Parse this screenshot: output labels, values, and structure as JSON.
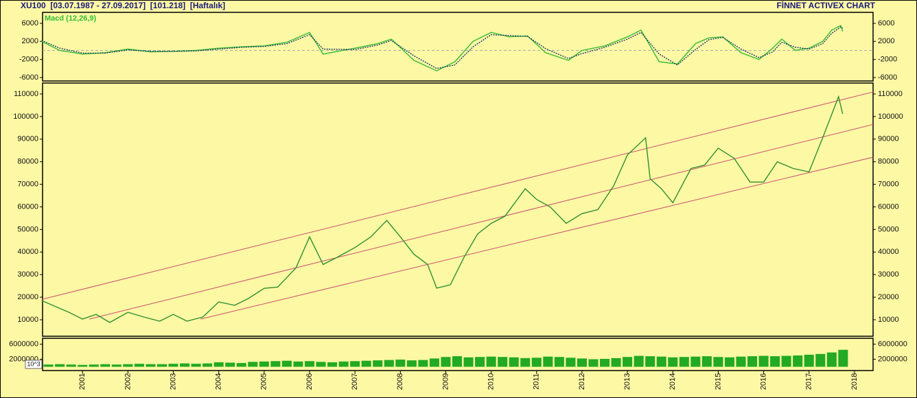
{
  "header": {
    "title": "XU100  [03.07.1987 - 27.09.2017]  [101.218]  [Haftalık]",
    "brand": "FİNNET ACTIVEX CHART"
  },
  "chart_data": [
    {
      "type": "line",
      "xlim": [
        2000.12,
        2018.41
      ],
      "ylim": [
        -6760,
        8430
      ],
      "yticks": [
        6000,
        2000,
        -2000,
        -6000
      ],
      "zero_line": true,
      "x": [
        2000.1,
        2000.5,
        2001.0,
        2001.5,
        2002.0,
        2002.5,
        2003.0,
        2003.5,
        2004.0,
        2004.5,
        2005.0,
        2005.5,
        2006.0,
        2006.3,
        2007.0,
        2007.5,
        2007.8,
        2008.3,
        2008.8,
        2009.2,
        2009.6,
        2010.0,
        2010.4,
        2010.8,
        2011.2,
        2011.7,
        2012.0,
        2012.5,
        2013.0,
        2013.3,
        2013.7,
        2014.1,
        2014.5,
        2014.8,
        2015.1,
        2015.5,
        2015.9,
        2016.2,
        2016.4,
        2016.7,
        2017.0,
        2017.3,
        2017.5,
        2017.7,
        2017.74
      ],
      "series": [
        {
          "name": "Macd (12,26,9)",
          "color": "#33bb33",
          "values": [
            2000,
            0,
            -800,
            -500,
            300,
            -300,
            -200,
            0,
            500,
            800,
            1000,
            1800,
            4000,
            -800,
            500,
            1500,
            2500,
            -2200,
            -4500,
            -2500,
            2000,
            4000,
            3000,
            3200,
            -500,
            -2200,
            0,
            1000,
            3000,
            4500,
            -2500,
            -3000,
            1500,
            2800,
            3000,
            -500,
            -2000,
            500,
            2500,
            0,
            500,
            2000,
            4500,
            5500,
            4200
          ]
        },
        {
          "color": "#1a3a6a",
          "dashed": true,
          "values": [
            2200,
            500,
            -600,
            -600,
            100,
            -200,
            -200,
            -100,
            300,
            700,
            900,
            1500,
            3500,
            300,
            200,
            1200,
            2200,
            -1200,
            -4000,
            -3200,
            800,
            3500,
            3300,
            3100,
            400,
            -1800,
            -700,
            700,
            2500,
            4000,
            -800,
            -3200,
            200,
            2400,
            2900,
            300,
            -1600,
            -300,
            1800,
            700,
            300,
            1500,
            3800,
            5200,
            4900
          ]
        }
      ]
    },
    {
      "type": "line",
      "xlim": [
        2000.12,
        2018.41
      ],
      "ylim": [
        2700,
        114850
      ],
      "yticks": [
        10000,
        20000,
        30000,
        40000,
        50000,
        60000,
        70000,
        80000,
        90000,
        100000,
        110000
      ],
      "x": [
        2000.1,
        2000.7,
        2001.0,
        2001.3,
        2001.6,
        2002.0,
        2002.35,
        2002.7,
        2003.0,
        2003.3,
        2003.65,
        2004.0,
        2004.35,
        2004.65,
        2005.0,
        2005.3,
        2005.7,
        2006.0,
        2006.3,
        2006.6,
        2007.0,
        2007.35,
        2007.7,
        2008.0,
        2008.3,
        2008.6,
        2008.8,
        2009.1,
        2009.4,
        2009.7,
        2010.0,
        2010.3,
        2010.75,
        2011.0,
        2011.3,
        2011.65,
        2012.0,
        2012.35,
        2012.7,
        2013.0,
        2013.4,
        2013.5,
        2013.75,
        2014.0,
        2014.4,
        2014.7,
        2015.0,
        2015.35,
        2015.7,
        2016.0,
        2016.3,
        2016.65,
        2017.0,
        2017.3,
        2017.5,
        2017.65,
        2017.74
      ],
      "series": [
        {
          "color": "#2f8f2f",
          "values": [
            18500,
            13300,
            10300,
            12400,
            8800,
            13300,
            11200,
            9400,
            12400,
            9400,
            11200,
            17900,
            16400,
            19400,
            23900,
            24500,
            33000,
            46700,
            34500,
            37600,
            42000,
            46700,
            54000,
            46700,
            39000,
            34500,
            24000,
            25500,
            37600,
            48000,
            52700,
            55800,
            68000,
            63300,
            60000,
            52700,
            57000,
            58800,
            69400,
            83000,
            90600,
            72400,
            68000,
            61800,
            77000,
            78500,
            86000,
            81500,
            71000,
            71000,
            80000,
            77000,
            75500,
            90600,
            101000,
            108800,
            101218
          ]
        }
      ],
      "channel": [
        {
          "color": "#c8506e",
          "x": [
            2000.12,
            2018.41
          ],
          "values": [
            19100,
            110900
          ]
        },
        {
          "color": "#c8506e",
          "x": [
            2001.15,
            2018.41
          ],
          "values": [
            10300,
            96500
          ]
        },
        {
          "color": "#c8506e",
          "x": [
            2003.6,
            2018.41
          ],
          "values": [
            10300,
            82000
          ]
        }
      ]
    },
    {
      "type": "bar",
      "xlim": [
        2000.12,
        2018.41
      ],
      "ylim": [
        -1000000,
        7550000
      ],
      "yticks": [
        6000000,
        2000000
      ],
      "y_label": "10^3",
      "color": "#22aa22",
      "xticks": [
        2001,
        2002,
        2003,
        2004,
        2005,
        2006,
        2007,
        2008,
        2009,
        2010,
        2011,
        2012,
        2013,
        2014,
        2015,
        2016,
        2017,
        2018
      ],
      "x": [
        2000.25,
        2000.5,
        2000.75,
        2001.0,
        2001.25,
        2001.5,
        2001.75,
        2002.0,
        2002.25,
        2002.5,
        2002.75,
        2003.0,
        2003.25,
        2003.5,
        2003.75,
        2004.0,
        2004.25,
        2004.5,
        2004.75,
        2005.0,
        2005.25,
        2005.5,
        2005.75,
        2006.0,
        2006.25,
        2006.5,
        2006.75,
        2007.0,
        2007.25,
        2007.5,
        2007.75,
        2008.0,
        2008.25,
        2008.5,
        2008.75,
        2009.0,
        2009.25,
        2009.5,
        2009.75,
        2010.0,
        2010.25,
        2010.5,
        2010.75,
        2011.0,
        2011.25,
        2011.5,
        2011.75,
        2012.0,
        2012.25,
        2012.5,
        2012.75,
        2013.0,
        2013.25,
        2013.5,
        2013.75,
        2014.0,
        2014.25,
        2014.5,
        2014.75,
        2015.0,
        2015.25,
        2015.5,
        2015.75,
        2016.0,
        2016.25,
        2016.5,
        2016.75,
        2017.0,
        2017.25,
        2017.5,
        2017.75
      ],
      "values": [
        600000,
        700000,
        600000,
        500000,
        600000,
        700000,
        600000,
        700000,
        800000,
        700000,
        700000,
        800000,
        900000,
        800000,
        900000,
        1200000,
        1100000,
        1000000,
        1300000,
        1400000,
        1500000,
        1600000,
        1400000,
        1500000,
        1300000,
        1200000,
        1400000,
        1500000,
        1600000,
        1700000,
        1800000,
        1900000,
        1700000,
        1800000,
        2200000,
        2600000,
        2800000,
        2500000,
        2600000,
        2700000,
        2600000,
        2500000,
        2300000,
        2400000,
        2700000,
        2600000,
        2400000,
        2200000,
        2000000,
        2100000,
        2300000,
        2600000,
        2900000,
        2800000,
        2700000,
        2500000,
        2600000,
        2700000,
        2800000,
        2600000,
        2500000,
        2700000,
        2800000,
        2900000,
        2800000,
        2900000,
        3000000,
        3200000,
        3400000,
        3800000,
        4500000
      ]
    }
  ]
}
